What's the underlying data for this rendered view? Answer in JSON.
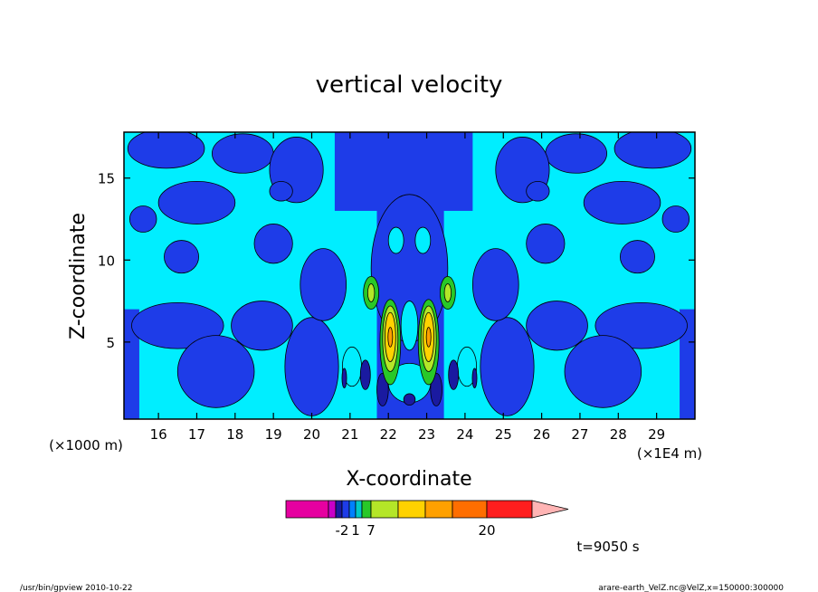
{
  "footer": {
    "left": "/usr/bin/gpview  2010-10-22",
    "right": "arare-earth_VelZ.nc@VelZ,x=150000:300000"
  },
  "time_label": "t=9050 s",
  "chart_data": {
    "type": "heatmap",
    "title": "vertical velocity",
    "xlabel": "X-coordinate",
    "ylabel": "Z-coordinate",
    "x_unit_left": "(×1000 m)",
    "x_unit_right": "(×1E4 m)",
    "xlim": [
      15.1,
      30.0
    ],
    "ylim": [
      0.3,
      17.8
    ],
    "x_ticks": [
      16,
      17,
      18,
      19,
      20,
      21,
      22,
      23,
      24,
      25,
      26,
      27,
      28,
      29
    ],
    "x_tick_labels": [
      "16",
      "17",
      "18",
      "19",
      "20",
      "21",
      "22",
      "23",
      "24",
      "25",
      "26",
      "27",
      "28",
      "29"
    ],
    "y_ticks": [
      5,
      10,
      15
    ],
    "y_tick_labels": [
      "5",
      "10",
      "15"
    ],
    "background_color": "#00eeff",
    "colorbar": {
      "colors": [
        "#e600a0",
        "#c800c8",
        "#1a1aa0",
        "#1e3ce8",
        "#0080ff",
        "#00c8c8",
        "#28c828",
        "#b4e628",
        "#ffd200",
        "#ffa000",
        "#ff6e00",
        "#ff1e1e",
        "#ff7878",
        "#ffb4b4"
      ],
      "labels": [
        {
          "text": "-2",
          "bin": 3
        },
        {
          "text": "1",
          "bin": 5
        },
        {
          "text": "7",
          "bin": 7
        },
        {
          "text": "20",
          "bin": 11
        }
      ]
    },
    "regions": [
      {
        "type": "rect",
        "x0": 20.6,
        "x1": 24.2,
        "y0": 13.0,
        "y1": 17.8,
        "color": "#1e3ce8"
      },
      {
        "type": "rect",
        "x0": 21.7,
        "x1": 23.45,
        "y0": 0.3,
        "y1": 17.8,
        "color": "#1e3ce8"
      },
      {
        "type": "ellipse",
        "cx": 22.55,
        "cy": 9.5,
        "rx": 1.0,
        "ry": 4.5,
        "color": "#1e3ce8"
      },
      {
        "type": "rect",
        "x0": 15.1,
        "x1": 15.5,
        "y0": 0.3,
        "y1": 7.0,
        "color": "#1e3ce8"
      },
      {
        "type": "ellipse",
        "cx": 16.5,
        "cy": 6.0,
        "rx": 1.2,
        "ry": 1.4,
        "color": "#1e3ce8"
      },
      {
        "type": "ellipse",
        "cx": 17.5,
        "cy": 3.2,
        "rx": 1.0,
        "ry": 2.2,
        "color": "#1e3ce8"
      },
      {
        "type": "ellipse",
        "cx": 18.7,
        "cy": 6.0,
        "rx": 0.8,
        "ry": 1.5,
        "color": "#1e3ce8"
      },
      {
        "type": "ellipse",
        "cx": 20.0,
        "cy": 3.5,
        "rx": 0.7,
        "ry": 3.0,
        "color": "#1e3ce8"
      },
      {
        "type": "ellipse",
        "cx": 20.3,
        "cy": 8.5,
        "rx": 0.6,
        "ry": 2.2,
        "color": "#1e3ce8"
      },
      {
        "type": "ellipse",
        "cx": 19.0,
        "cy": 11.0,
        "rx": 0.5,
        "ry": 1.2,
        "color": "#1e3ce8"
      },
      {
        "type": "ellipse",
        "cx": 17.0,
        "cy": 13.5,
        "rx": 1.0,
        "ry": 1.3,
        "color": "#1e3ce8"
      },
      {
        "type": "ellipse",
        "cx": 16.2,
        "cy": 16.8,
        "rx": 1.0,
        "ry": 1.2,
        "color": "#1e3ce8"
      },
      {
        "type": "ellipse",
        "cx": 18.2,
        "cy": 16.5,
        "rx": 0.8,
        "ry": 1.2,
        "color": "#1e3ce8"
      },
      {
        "type": "ellipse",
        "cx": 19.6,
        "cy": 15.5,
        "rx": 0.7,
        "ry": 2.0,
        "color": "#1e3ce8"
      },
      {
        "type": "ellipse",
        "cx": 15.6,
        "cy": 12.5,
        "rx": 0.35,
        "ry": 0.8,
        "color": "#1e3ce8"
      },
      {
        "type": "ellipse",
        "cx": 16.6,
        "cy": 10.2,
        "rx": 0.45,
        "ry": 1.0,
        "color": "#1e3ce8"
      },
      {
        "type": "ellipse",
        "cx": 19.2,
        "cy": 14.2,
        "rx": 0.3,
        "ry": 0.6,
        "color": "#1e3ce8"
      },
      {
        "type": "rect",
        "x0": 29.6,
        "x1": 30.0,
        "y0": 0.3,
        "y1": 7.0,
        "color": "#1e3ce8"
      },
      {
        "type": "ellipse",
        "cx": 28.6,
        "cy": 6.0,
        "rx": 1.2,
        "ry": 1.4,
        "color": "#1e3ce8"
      },
      {
        "type": "ellipse",
        "cx": 27.6,
        "cy": 3.2,
        "rx": 1.0,
        "ry": 2.2,
        "color": "#1e3ce8"
      },
      {
        "type": "ellipse",
        "cx": 26.4,
        "cy": 6.0,
        "rx": 0.8,
        "ry": 1.5,
        "color": "#1e3ce8"
      },
      {
        "type": "ellipse",
        "cx": 25.1,
        "cy": 3.5,
        "rx": 0.7,
        "ry": 3.0,
        "color": "#1e3ce8"
      },
      {
        "type": "ellipse",
        "cx": 24.8,
        "cy": 8.5,
        "rx": 0.6,
        "ry": 2.2,
        "color": "#1e3ce8"
      },
      {
        "type": "ellipse",
        "cx": 26.1,
        "cy": 11.0,
        "rx": 0.5,
        "ry": 1.2,
        "color": "#1e3ce8"
      },
      {
        "type": "ellipse",
        "cx": 28.1,
        "cy": 13.5,
        "rx": 1.0,
        "ry": 1.3,
        "color": "#1e3ce8"
      },
      {
        "type": "ellipse",
        "cx": 28.9,
        "cy": 16.8,
        "rx": 1.0,
        "ry": 1.2,
        "color": "#1e3ce8"
      },
      {
        "type": "ellipse",
        "cx": 26.9,
        "cy": 16.5,
        "rx": 0.8,
        "ry": 1.2,
        "color": "#1e3ce8"
      },
      {
        "type": "ellipse",
        "cx": 25.5,
        "cy": 15.5,
        "rx": 0.7,
        "ry": 2.0,
        "color": "#1e3ce8"
      },
      {
        "type": "ellipse",
        "cx": 29.5,
        "cy": 12.5,
        "rx": 0.35,
        "ry": 0.8,
        "color": "#1e3ce8"
      },
      {
        "type": "ellipse",
        "cx": 28.5,
        "cy": 10.2,
        "rx": 0.45,
        "ry": 1.0,
        "color": "#1e3ce8"
      },
      {
        "type": "ellipse",
        "cx": 25.9,
        "cy": 14.2,
        "rx": 0.3,
        "ry": 0.6,
        "color": "#1e3ce8"
      },
      {
        "type": "ellipse",
        "cx": 22.55,
        "cy": 2.5,
        "rx": 0.55,
        "ry": 1.2,
        "color": "#00eeff"
      },
      {
        "type": "ellipse",
        "cx": 22.55,
        "cy": 6.0,
        "rx": 0.22,
        "ry": 1.5,
        "color": "#00eeff"
      },
      {
        "type": "ellipse",
        "cx": 22.2,
        "cy": 11.2,
        "rx": 0.2,
        "ry": 0.8,
        "color": "#00eeff"
      },
      {
        "type": "ellipse",
        "cx": 22.9,
        "cy": 11.2,
        "rx": 0.2,
        "ry": 0.8,
        "color": "#00eeff"
      },
      {
        "type": "ellipse",
        "cx": 21.05,
        "cy": 3.5,
        "rx": 0.25,
        "ry": 1.2,
        "color": "#00eeff"
      },
      {
        "type": "ellipse",
        "cx": 24.05,
        "cy": 3.5,
        "rx": 0.25,
        "ry": 1.2,
        "color": "#00eeff"
      },
      {
        "type": "ellipse",
        "cx": 21.4,
        "cy": 3.0,
        "rx": 0.13,
        "ry": 0.9,
        "color": "#1a1aa0"
      },
      {
        "type": "ellipse",
        "cx": 23.7,
        "cy": 3.0,
        "rx": 0.13,
        "ry": 0.9,
        "color": "#1a1aa0"
      },
      {
        "type": "ellipse",
        "cx": 21.85,
        "cy": 2.1,
        "rx": 0.15,
        "ry": 1.0,
        "color": "#1a1aa0"
      },
      {
        "type": "ellipse",
        "cx": 23.25,
        "cy": 2.1,
        "rx": 0.15,
        "ry": 1.0,
        "color": "#1a1aa0"
      },
      {
        "type": "ellipse",
        "cx": 22.55,
        "cy": 1.5,
        "rx": 0.15,
        "ry": 0.35,
        "color": "#1a1aa0"
      },
      {
        "type": "ellipse",
        "cx": 20.85,
        "cy": 2.8,
        "rx": 0.06,
        "ry": 0.6,
        "color": "#1a1aa0"
      },
      {
        "type": "ellipse",
        "cx": 24.25,
        "cy": 2.8,
        "rx": 0.06,
        "ry": 0.6,
        "color": "#1a1aa0"
      },
      {
        "type": "ellipse",
        "cx": 21.55,
        "cy": 8.0,
        "rx": 0.2,
        "ry": 1.0,
        "color": "#28c828"
      },
      {
        "type": "ellipse",
        "cx": 21.55,
        "cy": 8.0,
        "rx": 0.09,
        "ry": 0.55,
        "color": "#b4e628"
      },
      {
        "type": "ellipse",
        "cx": 23.55,
        "cy": 8.0,
        "rx": 0.2,
        "ry": 1.0,
        "color": "#28c828"
      },
      {
        "type": "ellipse",
        "cx": 23.55,
        "cy": 8.0,
        "rx": 0.09,
        "ry": 0.55,
        "color": "#b4e628"
      },
      {
        "type": "ellipse",
        "cx": 22.05,
        "cy": 5.0,
        "rx": 0.27,
        "ry": 2.6,
        "color": "#28c828"
      },
      {
        "type": "ellipse",
        "cx": 22.05,
        "cy": 5.2,
        "rx": 0.2,
        "ry": 2.0,
        "color": "#b4e628"
      },
      {
        "type": "ellipse",
        "cx": 22.05,
        "cy": 5.3,
        "rx": 0.14,
        "ry": 1.5,
        "color": "#ffd200"
      },
      {
        "type": "ellipse",
        "cx": 22.05,
        "cy": 5.3,
        "rx": 0.06,
        "ry": 0.6,
        "color": "#ffa000"
      },
      {
        "type": "ellipse",
        "cx": 23.05,
        "cy": 5.0,
        "rx": 0.27,
        "ry": 2.6,
        "color": "#28c828"
      },
      {
        "type": "ellipse",
        "cx": 23.05,
        "cy": 5.2,
        "rx": 0.2,
        "ry": 2.0,
        "color": "#b4e628"
      },
      {
        "type": "ellipse",
        "cx": 23.05,
        "cy": 5.3,
        "rx": 0.14,
        "ry": 1.5,
        "color": "#ffd200"
      },
      {
        "type": "ellipse",
        "cx": 23.05,
        "cy": 5.3,
        "rx": 0.06,
        "ry": 0.6,
        "color": "#ffa000"
      }
    ]
  }
}
